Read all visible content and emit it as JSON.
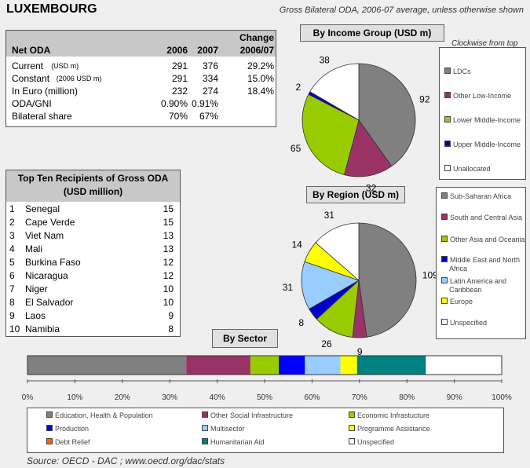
{
  "header": {
    "country": "LUXEMBOURG",
    "subtitle": "Gross Bilateral ODA, 2006-07 average, unless otherwise shown"
  },
  "net_oda": {
    "col_label": "Net ODA",
    "col_2006": "2006",
    "col_2007": "2007",
    "col_change": "Change 2006/07",
    "rows": [
      {
        "label": "Current",
        "unit": "(USD m)",
        "v2006": "291",
        "v2007": "376",
        "change": "29.2%"
      },
      {
        "label": "Constant",
        "unit": "(2006 USD m)",
        "v2006": "291",
        "v2007": "334",
        "change": "15.0%"
      },
      {
        "label": "In Euro (million)",
        "unit": "",
        "v2006": "232",
        "v2007": "274",
        "change": "18.4%"
      },
      {
        "label": "ODA/GNI",
        "unit": "",
        "v2006": "0.90%",
        "v2007": "0.91%",
        "change": ""
      },
      {
        "label": "Bilateral share",
        "unit": "",
        "v2006": "70%",
        "v2007": "67%",
        "change": ""
      }
    ]
  },
  "top_ten": {
    "title": "Top Ten Recipients of Gross ODA (USD million)",
    "items": [
      {
        "rank": "1",
        "name": "Senegal",
        "value": "15"
      },
      {
        "rank": "2",
        "name": "Cape Verde",
        "value": "15"
      },
      {
        "rank": "3",
        "name": "Viet Nam",
        "value": "13"
      },
      {
        "rank": "4",
        "name": "Mali",
        "value": "13"
      },
      {
        "rank": "5",
        "name": "Burkina Faso",
        "value": "12"
      },
      {
        "rank": "6",
        "name": "Nicaragua",
        "value": "12"
      },
      {
        "rank": "7",
        "name": "Niger",
        "value": "10"
      },
      {
        "rank": "8",
        "name": "El Salvador",
        "value": "10"
      },
      {
        "rank": "9",
        "name": "Laos",
        "value": "9"
      },
      {
        "rank": "10",
        "name": "Namibia",
        "value": "8"
      }
    ]
  },
  "clockwise_note": "Clockwise from top",
  "source": "Source:  OECD - DAC ; www.oecd.org/dac/stats",
  "chart_data": [
    {
      "type": "pie",
      "title": "By Income Group (USD m)",
      "categories": [
        "LDCs",
        "Other Low-Income",
        "Lower Middle-Income",
        "Upper Middle-Income",
        "Unallocated"
      ],
      "values": [
        92,
        32,
        65,
        2,
        38
      ],
      "labels": [
        "92",
        "32",
        "65",
        "2",
        "38"
      ],
      "colors": [
        "#808080",
        "#993366",
        "#99cc00",
        "#0000cc",
        "#ffffff"
      ]
    },
    {
      "type": "pie",
      "title": "By Region (USD m)",
      "categories": [
        "Sub-Saharan Africa",
        "South and Central Asia",
        "Other Asia and Oceania",
        "Middle East and North Africa",
        "Latin America and Caribbean",
        "Europe",
        "Unspecified"
      ],
      "values": [
        109,
        9,
        26,
        8,
        31,
        14,
        31
      ],
      "labels": [
        "109",
        "9",
        "26",
        "8",
        "31",
        "14",
        "31"
      ],
      "colors": [
        "#808080",
        "#993366",
        "#99cc00",
        "#0000cc",
        "#99ccff",
        "#ffff00",
        "#ffffff"
      ]
    },
    {
      "type": "bar",
      "title": "By Sector",
      "orientation": "horizontal-stacked-100",
      "categories": [
        "Education, Health & Population",
        "Other Social Infrastructure",
        "Economic Infrastucture",
        "Production",
        "Multisector",
        "Programme Assistance",
        "Debt Relief",
        "Humanitarian Aid",
        "Unspecified"
      ],
      "values": [
        33.5,
        13.5,
        6,
        5.5,
        7.5,
        3.5,
        0,
        14.5,
        16
      ],
      "colors": [
        "#808080",
        "#993366",
        "#99cc00",
        "#0000ff",
        "#99ccff",
        "#ffff00",
        "#ff6600",
        "#008080",
        "#ffffff"
      ],
      "xlim": [
        0,
        100
      ],
      "ticks": [
        "0%",
        "10%",
        "20%",
        "30%",
        "40%",
        "50%",
        "60%",
        "70%",
        "80%",
        "90%",
        "100%"
      ]
    }
  ]
}
